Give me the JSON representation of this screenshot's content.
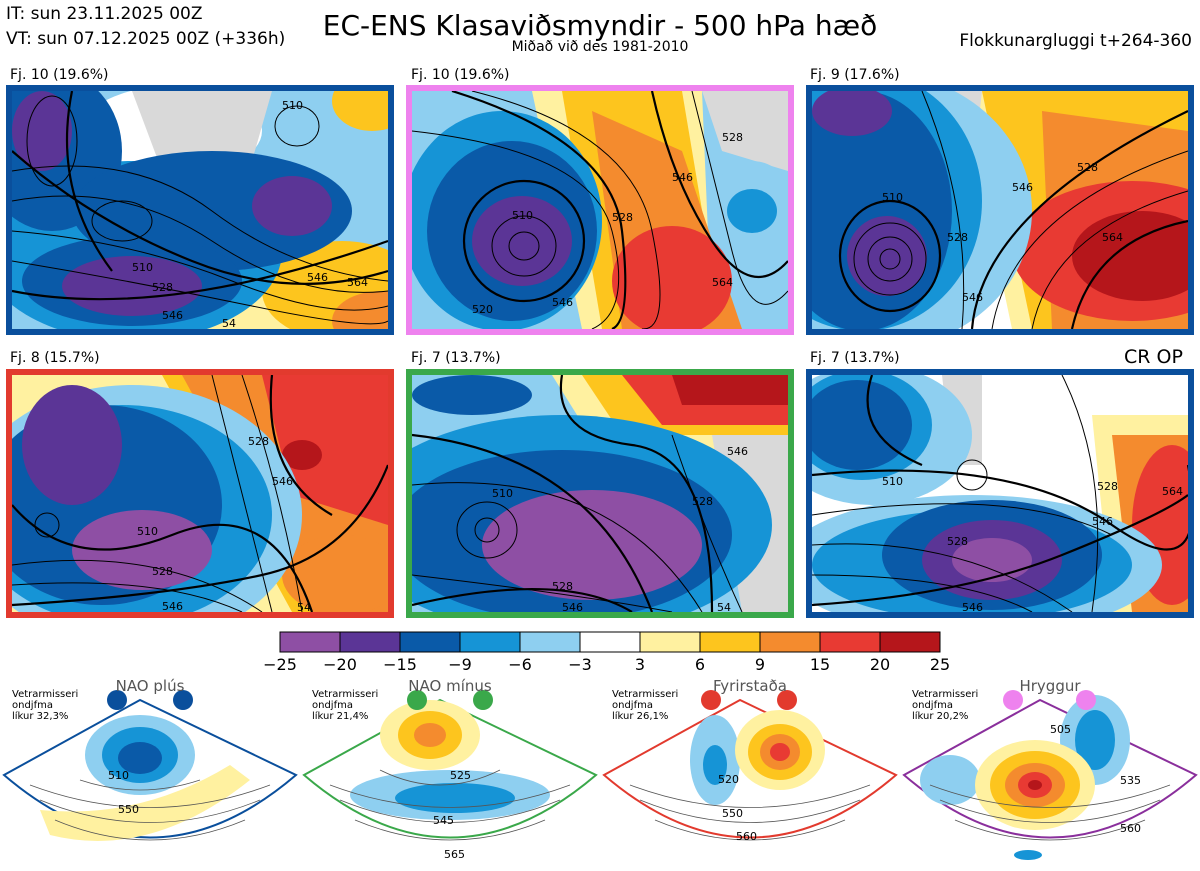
{
  "header": {
    "init_time": "IT: sun 23.11.2025 00Z",
    "valid_time": "VT: sun 07.12.2025 00Z  (+336h)",
    "title": "EC-ENS Klasaviðsmyndir - 500 hPa hæð",
    "subtitle": "Miðað við des 1981-2010",
    "cluster_window": "Flokkunargluggi t+264-360"
  },
  "colors": {
    "blue_border": "#0a4f9c",
    "pink_border": "#ee82ee",
    "red_border": "#e23a2e",
    "green_border": "#3aa84a",
    "purple_border": "#8a2f9c"
  },
  "cr_op_label": "CR OP",
  "panels": [
    {
      "label": "Fj. 10 (19.6%)",
      "border": "blue",
      "contours": [
        "510",
        "510",
        "528",
        "546",
        "564",
        "546",
        "54"
      ]
    },
    {
      "label": "Fj. 10 (19.6%)",
      "border": "pink",
      "contours": [
        "510",
        "528",
        "546",
        "528",
        "564",
        "546",
        "520"
      ]
    },
    {
      "label": "Fj. 9 (17.6%)",
      "border": "blue",
      "contours": [
        "510",
        "528",
        "546",
        "564",
        "528",
        "546"
      ]
    },
    {
      "label": "Fj. 8 (15.7%)",
      "border": "red",
      "contours": [
        "510",
        "528",
        "546",
        "528",
        "546",
        "54"
      ]
    },
    {
      "label": "Fj. 7 (13.7%)",
      "border": "green",
      "contours": [
        "510",
        "528",
        "546",
        "528",
        "546",
        "54"
      ]
    },
    {
      "label": "Fj. 7 (13.7%)",
      "border": "blue",
      "contours": [
        "510",
        "528",
        "546",
        "564",
        "528",
        "546"
      ]
    }
  ],
  "chart_data": {
    "type": "heatmap",
    "title": "EC-ENS Klasaviðsmyndir - 500 hPa hæð",
    "variable": "500 hPa geopotential height anomaly (dam) with height contours",
    "colorbar": {
      "ticks": [
        "−25",
        "−20",
        "−15",
        "−9",
        "−6",
        "−3",
        "3",
        "6",
        "9",
        "15",
        "20",
        "25"
      ],
      "colors": [
        "#8e4fa4",
        "#5b3596",
        "#0a5aa8",
        "#1694d6",
        "#8ecff0",
        "#ffffff",
        "#fff1a0",
        "#fdc51e",
        "#f48b2e",
        "#e83a33",
        "#b5161b"
      ]
    },
    "clusters": [
      {
        "label": "Fj. 10 (19.6%)",
        "members": 10,
        "percent": 19.6
      },
      {
        "label": "Fj. 10 (19.6%)",
        "members": 10,
        "percent": 19.6
      },
      {
        "label": "Fj. 9 (17.6%)",
        "members": 9,
        "percent": 17.6
      },
      {
        "label": "Fj. 8 (15.7%)",
        "members": 8,
        "percent": 15.7
      },
      {
        "label": "Fj. 7 (13.7%)",
        "members": 7,
        "percent": 13.7
      },
      {
        "label": "Fj. 7 (13.7%)",
        "members": 7,
        "percent": 13.7
      }
    ]
  },
  "regimes": [
    {
      "name": "NAO plús",
      "note": [
        "Vetrarmisseri",
        "ondjfma",
        "líkur 32,3%"
      ],
      "contours": [
        "510",
        "550"
      ],
      "color": "#0a4f9c"
    },
    {
      "name": "NAO mínus",
      "note": [
        "Vetrarmisseri",
        "ondjfma",
        "líkur 21,4%"
      ],
      "contours": [
        "525",
        "545",
        "565"
      ],
      "color": "#3aa84a"
    },
    {
      "name": "Fyrirstaða",
      "note": [
        "Vetrarmisseri",
        "ondjfma",
        "líkur 26,1%"
      ],
      "contours": [
        "520",
        "550",
        "560"
      ],
      "color": "#e23a2e"
    },
    {
      "name": "Hryggur",
      "note": [
        "Vetrarmisseri",
        "ondjfma",
        "líkur 20,2%"
      ],
      "contours": [
        "505",
        "535",
        "560"
      ],
      "color": "#8a2f9c"
    }
  ]
}
